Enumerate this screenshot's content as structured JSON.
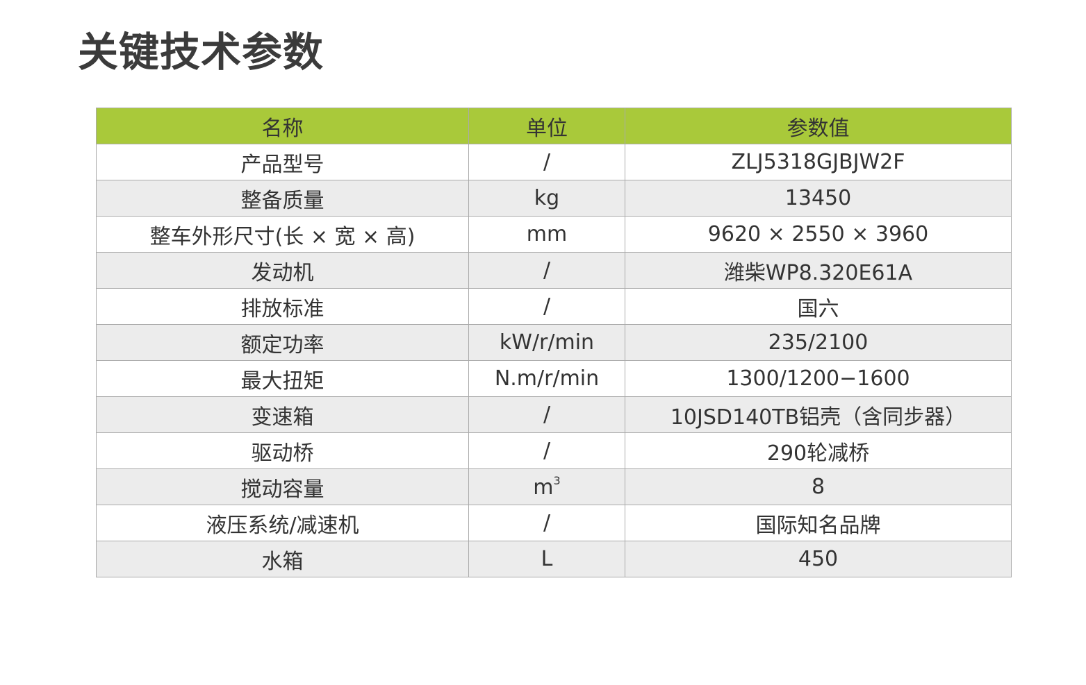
{
  "title": "关键技术参数",
  "table": {
    "headers": [
      "名称",
      "单位",
      "参数值"
    ],
    "rows": [
      {
        "name": "产品型号",
        "unit": "/",
        "value": "ZLJ5318GJBJW2F"
      },
      {
        "name": "整备质量",
        "unit": "kg",
        "value": "13450"
      },
      {
        "name": "整车外形尺寸(长 × 宽 × 高)",
        "unit": "mm",
        "value": "9620 × 2550 × 3960"
      },
      {
        "name": "发动机",
        "unit": "/",
        "value": "潍柴WP8.320E61A"
      },
      {
        "name": "排放标准",
        "unit": "/",
        "value": "国六"
      },
      {
        "name": "额定功率",
        "unit": "kW/r/min",
        "value": "235/2100"
      },
      {
        "name": "最大扭矩",
        "unit": "N.m/r/min",
        "value": "1300/1200−1600"
      },
      {
        "name": "变速箱",
        "unit": "/",
        "value": "10JSD140TB铝壳（含同步器）"
      },
      {
        "name": "驱动桥",
        "unit": "/",
        "value": "290轮减桥"
      },
      {
        "name": "搅动容量",
        "unit": "m",
        "unit_sup": "3",
        "value": "8"
      },
      {
        "name": "液压系统/减速机",
        "unit": "/",
        "value": "国际知名品牌"
      },
      {
        "name": "水箱",
        "unit": "L",
        "value": "450"
      }
    ]
  },
  "colors": {
    "header_bg": "#a9c93a",
    "stripe_bg": "#ececec",
    "border": "#aaaaaa"
  }
}
